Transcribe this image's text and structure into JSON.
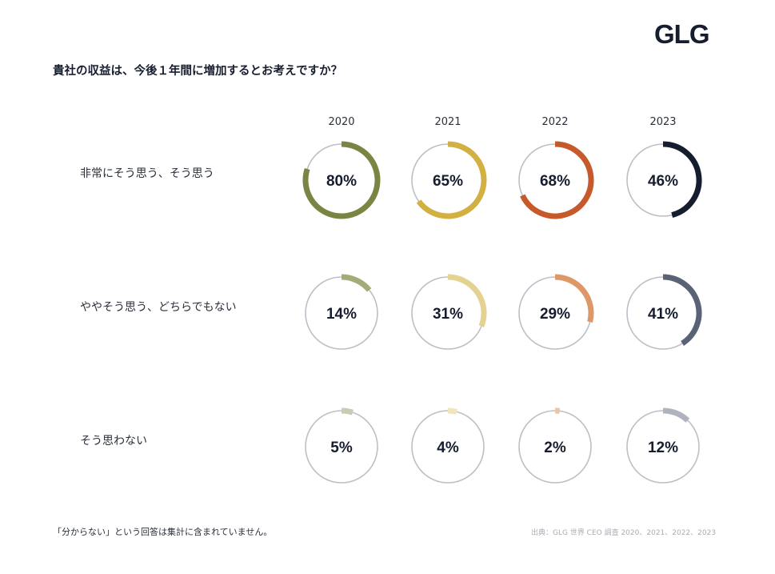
{
  "brand": {
    "logo": "GLG"
  },
  "question": "貴社の収益は、今後１年間に増加するとお考えですか？",
  "footnote": "「分からない」という回答は集計に含まれていません。",
  "source": "出典：GLG 世界 CEO 調査 2020、2021、2022、2023",
  "chart_data": {
    "type": "donut-grid",
    "title": "貴社の収益は、今後１年間に増加するとお考えですか？",
    "years": [
      "2020",
      "2021",
      "2022",
      "2023"
    ],
    "rows": [
      {
        "label": "非常にそう思う、そう思う",
        "values": [
          80,
          65,
          68,
          46
        ],
        "unit": "%"
      },
      {
        "label": "ややそう思う、どちらでもない",
        "values": [
          14,
          31,
          29,
          41
        ],
        "unit": "%"
      },
      {
        "label": "そう思わない",
        "values": [
          5,
          4,
          2,
          12
        ],
        "unit": "%"
      }
    ],
    "colors": [
      [
        "#7a8544",
        "#d2b042",
        "#c75a2b",
        "#161d2e"
      ],
      [
        "#a4ab78",
        "#e4d290",
        "#de9868",
        "#5a6375"
      ],
      [
        "#c9cbb2",
        "#efe6bd",
        "#ecc4a8",
        "#aeb3bd"
      ]
    ],
    "track_color": "#bcc0c6"
  }
}
